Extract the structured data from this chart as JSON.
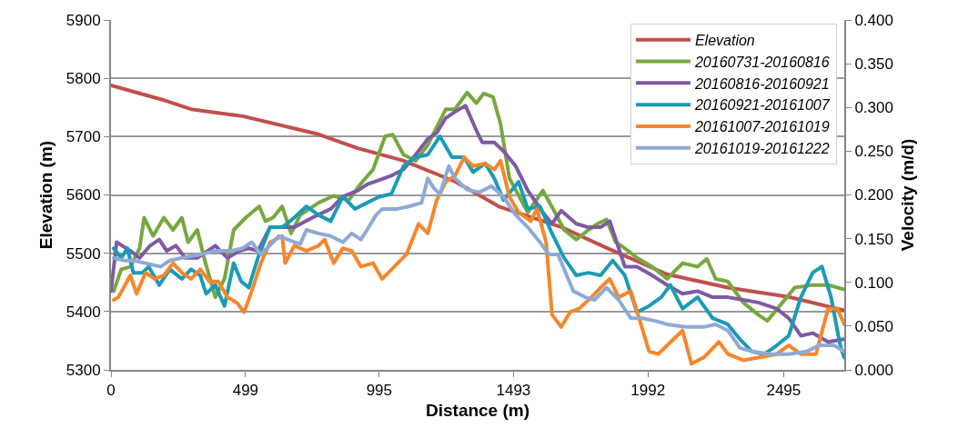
{
  "chart_data": {
    "type": "line",
    "xlabel": "Distance (m)",
    "ylabel": "Elevation (m)",
    "y2label": "Velocity (m/d)",
    "xlim": [
      0,
      2720
    ],
    "xticks": [
      0,
      499,
      995,
      1493,
      1992,
      2495
    ],
    "ylim": [
      5300,
      5900
    ],
    "yticks": [
      5300,
      5400,
      5500,
      5600,
      5700,
      5800,
      5900
    ],
    "y2lim": [
      0,
      0.4
    ],
    "y2ticks": [
      {
        "value": 0,
        "label": "0.000"
      },
      {
        "value": 0.05,
        "label": "0.050"
      },
      {
        "value": 0.1,
        "label": "0.100"
      },
      {
        "value": 0.15,
        "label": "0.150"
      },
      {
        "value": 0.2,
        "label": "0.200"
      },
      {
        "value": 0.25,
        "label": "0.250"
      },
      {
        "value": 0.3,
        "label": "0.300"
      },
      {
        "value": 0.35,
        "label": "0.350"
      },
      {
        "value": 0.4,
        "label": "0.400"
      }
    ],
    "grid": "y",
    "legend": "top right",
    "marker": "none",
    "line_style": "solid",
    "series": [
      {
        "name": "Elevation",
        "color": "#c0504d",
        "x": [
          0,
          100,
          200,
          297,
          489,
          770,
          915,
          1083,
          1276,
          1444,
          1670,
          1839,
          2062,
          2288,
          2514,
          2720
        ],
        "values": [
          5788,
          5775,
          5762,
          5747,
          5735,
          5704,
          5680,
          5659,
          5623,
          5579,
          5545,
          5509,
          5464,
          5441,
          5425,
          5402
        ]
      },
      {
        "name": "20160731-20160816",
        "color": "#77a83f",
        "axis": "y2",
        "x": [
          10,
          38,
          72,
          106,
          123,
          156,
          196,
          230,
          263,
          286,
          320,
          348,
          387,
          421,
          455,
          500,
          550,
          573,
          601,
          635,
          668,
          702,
          770,
          826,
          882,
          927,
          972,
          1017,
          1045,
          1085,
          1130,
          1175,
          1242,
          1276,
          1321,
          1355,
          1383,
          1417,
          1445,
          1478,
          1546,
          1602,
          1647,
          1681,
          1726,
          1771,
          1805,
          1838,
          1872,
          1906,
          1951,
          2007,
          2063,
          2120,
          2176,
          2210,
          2243,
          2288,
          2345,
          2401,
          2435,
          2491,
          2536,
          2603,
          2660,
          2720
        ],
        "values": [
          0.09,
          0.115,
          0.118,
          0.139,
          0.174,
          0.153,
          0.174,
          0.16,
          0.174,
          0.146,
          0.16,
          0.125,
          0.083,
          0.104,
          0.16,
          0.174,
          0.187,
          0.17,
          0.174,
          0.187,
          0.156,
          0.177,
          0.191,
          0.199,
          0.194,
          0.213,
          0.229,
          0.267,
          0.269,
          0.246,
          0.239,
          0.257,
          0.298,
          0.298,
          0.317,
          0.305,
          0.316,
          0.312,
          0.281,
          0.219,
          0.18,
          0.205,
          0.18,
          0.16,
          0.149,
          0.16,
          0.167,
          0.172,
          0.146,
          0.139,
          0.128,
          0.118,
          0.104,
          0.122,
          0.118,
          0.127,
          0.104,
          0.101,
          0.077,
          0.063,
          0.056,
          0.077,
          0.094,
          0.097,
          0.097,
          0.092
        ]
      },
      {
        "name": "20160816-20160921",
        "color": "#7f5aa2",
        "axis": "y2",
        "x": [
          0,
          21,
          72,
          106,
          145,
          179,
          207,
          241,
          275,
          320,
          387,
          432,
          477,
          511,
          545,
          590,
          680,
          747,
          815,
          860,
          916,
          950,
          1040,
          1085,
          1130,
          1175,
          1208,
          1242,
          1276,
          1315,
          1355,
          1377,
          1422,
          1456,
          1501,
          1546,
          1602,
          1636,
          1670,
          1726,
          1771,
          1816,
          1850,
          1906,
          1951,
          2007,
          2063,
          2120,
          2176,
          2232,
          2288,
          2345,
          2401,
          2469,
          2514,
          2559,
          2603,
          2660,
          2720
        ],
        "values": [
          0.09,
          0.146,
          0.136,
          0.128,
          0.142,
          0.149,
          0.136,
          0.142,
          0.128,
          0.128,
          0.142,
          0.128,
          0.136,
          0.139,
          0.136,
          0.163,
          0.163,
          0.174,
          0.184,
          0.198,
          0.205,
          0.212,
          0.222,
          0.229,
          0.246,
          0.264,
          0.271,
          0.288,
          0.295,
          0.302,
          0.274,
          0.26,
          0.26,
          0.25,
          0.233,
          0.205,
          0.18,
          0.167,
          0.182,
          0.167,
          0.163,
          0.163,
          0.17,
          0.118,
          0.118,
          0.108,
          0.097,
          0.087,
          0.09,
          0.083,
          0.083,
          0.08,
          0.077,
          0.07,
          0.059,
          0.039,
          0.042,
          0.032,
          0.035
        ]
      },
      {
        "name": "20160921-20161007",
        "color": "#1a9bb5",
        "axis": "y2",
        "x": [
          10,
          38,
          61,
          83,
          117,
          140,
          179,
          218,
          263,
          297,
          331,
          353,
          387,
          421,
          455,
          483,
          511,
          545,
          590,
          635,
          680,
          725,
          770,
          815,
          860,
          905,
          950,
          995,
          1040,
          1085,
          1130,
          1175,
          1220,
          1265,
          1310,
          1343,
          1388,
          1422,
          1456,
          1512,
          1546,
          1591,
          1636,
          1681,
          1726,
          1771,
          1816,
          1861,
          1906,
          1951,
          1996,
          2041,
          2075,
          2120,
          2176,
          2232,
          2288,
          2333,
          2378,
          2423,
          2457,
          2514,
          2559,
          2603,
          2637,
          2671,
          2705,
          2720
        ],
        "values": [
          0.139,
          0.128,
          0.139,
          0.111,
          0.111,
          0.118,
          0.097,
          0.115,
          0.104,
          0.115,
          0.108,
          0.087,
          0.097,
          0.073,
          0.122,
          0.101,
          0.094,
          0.128,
          0.163,
          0.163,
          0.174,
          0.187,
          0.177,
          0.17,
          0.198,
          0.184,
          0.191,
          0.198,
          0.201,
          0.233,
          0.243,
          0.246,
          0.267,
          0.243,
          0.243,
          0.226,
          0.236,
          0.219,
          0.194,
          0.215,
          0.184,
          0.187,
          0.156,
          0.128,
          0.108,
          0.111,
          0.108,
          0.125,
          0.108,
          0.066,
          0.073,
          0.083,
          0.097,
          0.07,
          0.083,
          0.059,
          0.052,
          0.035,
          0.021,
          0.018,
          0.025,
          0.039,
          0.083,
          0.111,
          0.118,
          0.083,
          0.028,
          0.014
        ]
      },
      {
        "name": "20161007-20161019",
        "color": "#f6862c",
        "axis": "y2",
        "x": [
          10,
          27,
          72,
          95,
          128,
          162,
          196,
          230,
          263,
          297,
          331,
          365,
          398,
          432,
          466,
          494,
          522,
          556,
          590,
          635,
          646,
          680,
          725,
          770,
          792,
          826,
          860,
          893,
          927,
          972,
          1006,
          1051,
          1096,
          1141,
          1175,
          1208,
          1242,
          1276,
          1310,
          1343,
          1388,
          1422,
          1445,
          1478,
          1512,
          1557,
          1580,
          1614,
          1636,
          1670,
          1703,
          1737,
          1782,
          1816,
          1850,
          1883,
          1928,
          1962,
          1996,
          2030,
          2063,
          2120,
          2153,
          2198,
          2255,
          2288,
          2345,
          2401,
          2469,
          2514,
          2559,
          2615,
          2660,
          2694,
          2720
        ],
        "values": [
          0.08,
          0.083,
          0.108,
          0.087,
          0.111,
          0.104,
          0.108,
          0.122,
          0.111,
          0.104,
          0.115,
          0.101,
          0.101,
          0.083,
          0.077,
          0.066,
          0.09,
          0.122,
          0.146,
          0.153,
          0.122,
          0.142,
          0.136,
          0.142,
          0.149,
          0.122,
          0.139,
          0.136,
          0.118,
          0.122,
          0.104,
          0.118,
          0.132,
          0.167,
          0.156,
          0.194,
          0.215,
          0.222,
          0.243,
          0.233,
          0.236,
          0.229,
          0.239,
          0.198,
          0.18,
          0.17,
          0.184,
          0.146,
          0.063,
          0.049,
          0.066,
          0.07,
          0.083,
          0.094,
          0.104,
          0.083,
          0.09,
          0.056,
          0.021,
          0.018,
          0.028,
          0.045,
          0.007,
          0.014,
          0.032,
          0.018,
          0.011,
          0.014,
          0.018,
          0.028,
          0.018,
          0.018,
          0.07,
          0.07,
          0.052
        ]
      },
      {
        "name": "20161019-20161222",
        "color": "#8eaad5",
        "axis": "y2",
        "x": [
          10,
          50,
          83,
          128,
          185,
          218,
          263,
          331,
          387,
          443,
          488,
          522,
          556,
          601,
          623,
          680,
          702,
          725,
          770,
          815,
          860,
          893,
          927,
          950,
          983,
          1006,
          1062,
          1107,
          1152,
          1175,
          1197,
          1220,
          1253,
          1276,
          1321,
          1366,
          1411,
          1456,
          1501,
          1546,
          1591,
          1625,
          1658,
          1681,
          1715,
          1760,
          1793,
          1838,
          1883,
          1928,
          1973,
          2018,
          2063,
          2131,
          2198,
          2243,
          2288,
          2333,
          2378,
          2446,
          2514,
          2581,
          2626,
          2682,
          2720
        ],
        "values": [
          0.128,
          0.125,
          0.125,
          0.122,
          0.118,
          0.125,
          0.128,
          0.132,
          0.136,
          0.136,
          0.139,
          0.146,
          0.132,
          0.146,
          0.153,
          0.146,
          0.144,
          0.16,
          0.156,
          0.153,
          0.146,
          0.156,
          0.149,
          0.16,
          0.177,
          0.184,
          0.184,
          0.187,
          0.191,
          0.219,
          0.208,
          0.201,
          0.233,
          0.219,
          0.206,
          0.203,
          0.21,
          0.198,
          0.177,
          0.163,
          0.146,
          0.132,
          0.132,
          0.115,
          0.09,
          0.083,
          0.08,
          0.094,
          0.08,
          0.059,
          0.059,
          0.056,
          0.052,
          0.049,
          0.049,
          0.052,
          0.045,
          0.025,
          0.021,
          0.018,
          0.018,
          0.021,
          0.028,
          0.028,
          0.021
        ]
      }
    ]
  }
}
